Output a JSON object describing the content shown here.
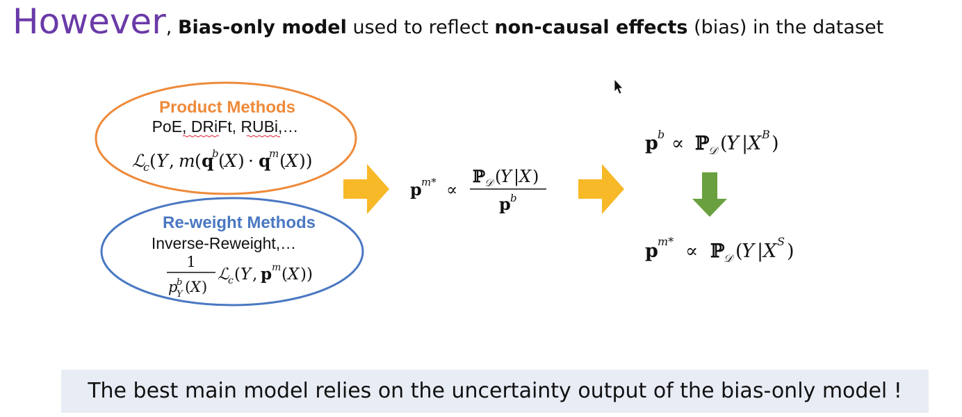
{
  "title": {
    "lead": "However",
    "comma": ", ",
    "bold1": "Bias-only model",
    "mid": " used to reflect ",
    "bold2": "non-causal effects",
    "tail": " (bias) in the dataset"
  },
  "product": {
    "heading": "Product Methods",
    "examples": "PoE, DRiFt, RUBi,…",
    "color": "#ee8a3a"
  },
  "reweight": {
    "heading": "Re-weight Methods",
    "examples": "Inverse-Reweight,…",
    "color": "#4a78c2"
  },
  "arrow_colors": {
    "orange": "#f7b928",
    "green": "#6aa03f"
  },
  "bottom_note": "The best main model relies on the uncertainty output of the bias-only model !"
}
